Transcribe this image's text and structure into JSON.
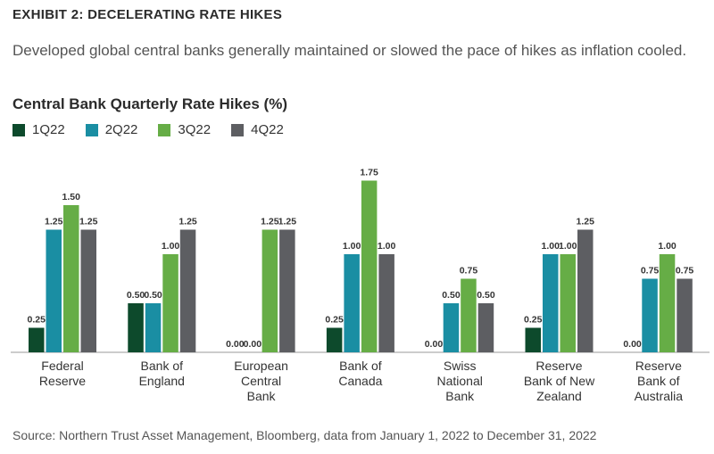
{
  "exhibit_label": "EXHIBIT 2: DECELERATING RATE HIKES",
  "subtitle": "Developed global central banks generally maintained or slowed the pace of hikes as inflation cooled.",
  "source": "Source: Northern Trust Asset Management, Bloomberg, data from January 1, 2022 to December 31, 2022",
  "chart_data": {
    "type": "bar",
    "title": "Central Bank Quarterly Rate Hikes (%)",
    "xlabel": "",
    "ylabel": "",
    "ylim": [
      0,
      1.75
    ],
    "grid": false,
    "legend_position": "top-left",
    "categories": [
      [
        "Federal",
        "Reserve"
      ],
      [
        "Bank of",
        "England"
      ],
      [
        "European",
        "Central",
        "Bank"
      ],
      [
        "Bank of",
        "Canada"
      ],
      [
        "Swiss",
        "National",
        "Bank"
      ],
      [
        "Reserve",
        "Bank of New",
        "Zealand"
      ],
      [
        "Reserve",
        "Bank of",
        "Australia"
      ]
    ],
    "series": [
      {
        "name": "1Q22",
        "color": "#0d4a2c",
        "values": [
          0.25,
          0.5,
          0.0,
          0.25,
          0.0,
          0.25,
          0.0
        ],
        "labels": [
          "0.25",
          "0.50",
          "0.00",
          "0.25",
          "0.00",
          "0.25",
          "0.00"
        ]
      },
      {
        "name": "2Q22",
        "color": "#1a8ea3",
        "values": [
          1.25,
          0.5,
          0.0,
          1.0,
          0.5,
          1.0,
          0.75
        ],
        "labels": [
          "1.25",
          "0.50",
          "0.00",
          "1.00",
          "0.50",
          "1.00",
          "0.75"
        ]
      },
      {
        "name": "3Q22",
        "color": "#66ad46",
        "values": [
          1.5,
          1.0,
          1.25,
          1.75,
          0.75,
          1.0,
          1.0
        ],
        "labels": [
          "1.50",
          "1.00",
          "1.25",
          "1.75",
          "0.75",
          "1.00",
          "1.00"
        ]
      },
      {
        "name": "4Q22",
        "color": "#5d5e62",
        "values": [
          1.25,
          1.25,
          1.25,
          1.0,
          0.5,
          1.25,
          0.75
        ],
        "labels": [
          "1.25",
          "1.25",
          "1.25",
          "1.00",
          "0.50",
          "1.25",
          "0.75"
        ]
      }
    ]
  }
}
